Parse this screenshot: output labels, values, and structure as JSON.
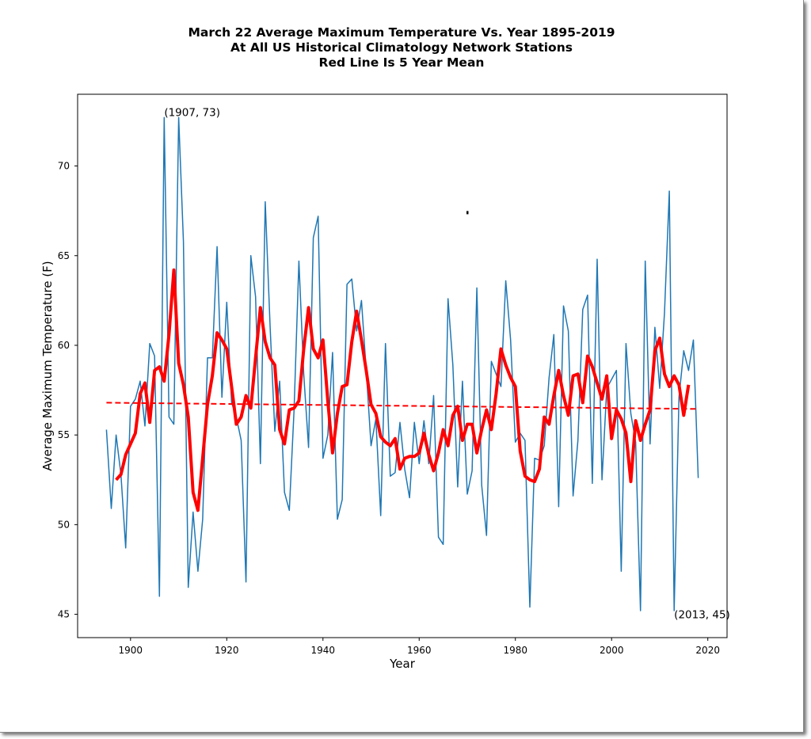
{
  "chart_data": {
    "type": "line",
    "title_lines": [
      "March 22 Average Maximum Temperature Vs. Year 1895-2019",
      "At All US Historical Climatology Network Stations",
      "Red Line Is 5 Year Mean"
    ],
    "xlabel": "Year",
    "ylabel": "Average Maximum Temperature (F)",
    "xlim": [
      1889,
      2024
    ],
    "ylim": [
      43.7,
      74.0
    ],
    "xticks": [
      1900,
      1920,
      1940,
      1960,
      1980,
      2000,
      2020
    ],
    "yticks": [
      45,
      50,
      55,
      60,
      65,
      70
    ],
    "grid": false,
    "annotations": [
      {
        "text": "(1907, 73)",
        "x": 1907,
        "y": 73
      },
      {
        "text": "(2013, 45)",
        "x": 2013,
        "y": 45
      }
    ],
    "series": [
      {
        "name": "Annual value",
        "style": "line",
        "color": "#1f77b4",
        "x": [
          1895,
          1896,
          1897,
          1898,
          1899,
          1900,
          1901,
          1902,
          1903,
          1904,
          1905,
          1906,
          1907,
          1908,
          1909,
          1910,
          1911,
          1912,
          1913,
          1914,
          1915,
          1916,
          1917,
          1918,
          1919,
          1920,
          1921,
          1922,
          1923,
          1924,
          1925,
          1926,
          1927,
          1928,
          1929,
          1930,
          1931,
          1932,
          1933,
          1934,
          1935,
          1936,
          1937,
          1938,
          1939,
          1940,
          1941,
          1942,
          1943,
          1944,
          1945,
          1946,
          1947,
          1948,
          1949,
          1950,
          1951,
          1952,
          1953,
          1954,
          1955,
          1956,
          1957,
          1958,
          1959,
          1960,
          1961,
          1962,
          1963,
          1964,
          1965,
          1966,
          1967,
          1968,
          1969,
          1970,
          1971,
          1972,
          1973,
          1974,
          1975,
          1976,
          1977,
          1978,
          1979,
          1980,
          1981,
          1982,
          1983,
          1984,
          1985,
          1986,
          1987,
          1988,
          1989,
          1990,
          1991,
          1992,
          1993,
          1994,
          1995,
          1996,
          1997,
          1998,
          1999,
          2000,
          2001,
          2002,
          2003,
          2004,
          2005,
          2006,
          2007,
          2008,
          2009,
          2010,
          2011,
          2012,
          2013,
          2014,
          2015,
          2016,
          2017,
          2018
        ],
        "values": [
          55.3,
          50.9,
          55.0,
          52.8,
          48.7,
          56.6,
          57.0,
          58.0,
          55.5,
          60.1,
          59.4,
          46.0,
          72.7,
          56.0,
          55.6,
          72.7,
          65.8,
          46.5,
          50.7,
          47.4,
          50.3,
          59.3,
          59.3,
          65.5,
          57.1,
          62.4,
          56.8,
          56.0,
          54.7,
          46.8,
          65.0,
          62.7,
          53.4,
          68.0,
          61.1,
          55.2,
          58.0,
          51.8,
          50.8,
          56.4,
          64.7,
          58.4,
          54.3,
          66.0,
          67.2,
          53.7,
          55.0,
          59.6,
          50.3,
          51.4,
          63.4,
          63.7,
          60.8,
          62.5,
          58.6,
          54.4,
          55.9,
          50.5,
          60.1,
          52.7,
          52.9,
          55.7,
          53.1,
          51.5,
          55.7,
          53.4,
          55.8,
          53.4,
          57.2,
          49.3,
          48.9,
          62.6,
          58.9,
          52.1,
          58.0,
          51.7,
          53.0,
          63.2,
          52.2,
          49.4,
          59.1,
          58.4,
          57.7,
          63.6,
          60.3,
          54.6,
          55.1,
          54.7,
          45.4,
          53.7,
          53.6,
          54.4,
          58.2,
          60.6,
          51.0,
          62.2,
          60.8,
          51.6,
          54.7,
          62.0,
          62.8,
          52.3,
          64.8,
          52.5,
          57.6,
          58.1,
          58.6,
          47.4,
          60.1,
          56.2,
          54.6,
          45.2,
          64.7,
          54.5,
          61.0,
          57.6,
          61.8,
          68.6,
          45.2,
          57.1,
          59.7,
          58.6,
          60.3,
          52.6
        ]
      },
      {
        "name": "5 Year Mean",
        "style": "thick-line",
        "color": "#ff0000",
        "x": [
          1897,
          1898,
          1899,
          1900,
          1901,
          1902,
          1903,
          1904,
          1905,
          1906,
          1907,
          1908,
          1909,
          1910,
          1911,
          1912,
          1913,
          1914,
          1915,
          1916,
          1917,
          1918,
          1919,
          1920,
          1921,
          1922,
          1923,
          1924,
          1925,
          1926,
          1927,
          1928,
          1929,
          1930,
          1931,
          1932,
          1933,
          1934,
          1935,
          1936,
          1937,
          1938,
          1939,
          1940,
          1941,
          1942,
          1943,
          1944,
          1945,
          1946,
          1947,
          1948,
          1949,
          1950,
          1951,
          1952,
          1953,
          1954,
          1955,
          1956,
          1957,
          1958,
          1959,
          1960,
          1961,
          1962,
          1963,
          1964,
          1965,
          1966,
          1967,
          1968,
          1969,
          1970,
          1971,
          1972,
          1973,
          1974,
          1975,
          1976,
          1977,
          1978,
          1979,
          1980,
          1981,
          1982,
          1983,
          1984,
          1985,
          1986,
          1987,
          1988,
          1989,
          1990,
          1991,
          1992,
          1993,
          1994,
          1995,
          1996,
          1997,
          1998,
          1999,
          2000,
          2001,
          2002,
          2003,
          2004,
          2005,
          2006,
          2007,
          2008,
          2009,
          2010,
          2011,
          2012,
          2013,
          2014,
          2015,
          2016
        ],
        "values": [
          52.5,
          52.8,
          53.9,
          54.5,
          55.1,
          57.3,
          57.9,
          55.7,
          58.6,
          58.8,
          58.0,
          60.6,
          64.2,
          59.0,
          57.8,
          56.0,
          51.8,
          50.8,
          53.7,
          56.7,
          58.3,
          60.7,
          60.3,
          59.8,
          57.7,
          55.6,
          56.0,
          57.2,
          56.5,
          59.3,
          62.1,
          60.2,
          59.3,
          58.9,
          55.3,
          54.5,
          56.4,
          56.5,
          56.9,
          59.8,
          62.1,
          59.8,
          59.3,
          60.3,
          56.9,
          54.0,
          56.2,
          57.7,
          57.8,
          60.2,
          61.9,
          60.3,
          58.6,
          56.7,
          56.2,
          54.9,
          54.6,
          54.4,
          54.8,
          53.1,
          53.7,
          53.8,
          53.8,
          54.0,
          55.1,
          53.9,
          53.0,
          54.0,
          55.3,
          54.4,
          56.1,
          56.6,
          54.7,
          55.6,
          55.6,
          54.0,
          55.3,
          56.4,
          55.3,
          57.3,
          59.8,
          58.9,
          58.2,
          57.7,
          54.1,
          52.7,
          52.5,
          52.4,
          53.1,
          56.0,
          55.6,
          57.2,
          58.6,
          57.2,
          56.1,
          58.3,
          58.4,
          56.8,
          59.4,
          58.8,
          57.9,
          57.0,
          58.3,
          54.8,
          56.4,
          55.9,
          55.1,
          52.4,
          55.8,
          54.7,
          55.6,
          56.4,
          59.7,
          60.4,
          58.4,
          57.7,
          58.3,
          57.8,
          56.1,
          57.8
        ]
      },
      {
        "name": "Linear trend",
        "style": "dashed",
        "color": "#ff0000",
        "x": [
          1895,
          2018
        ],
        "values": [
          56.8,
          56.45
        ]
      }
    ],
    "stray_mark": {
      "x": 1970,
      "y": 67.4
    }
  }
}
